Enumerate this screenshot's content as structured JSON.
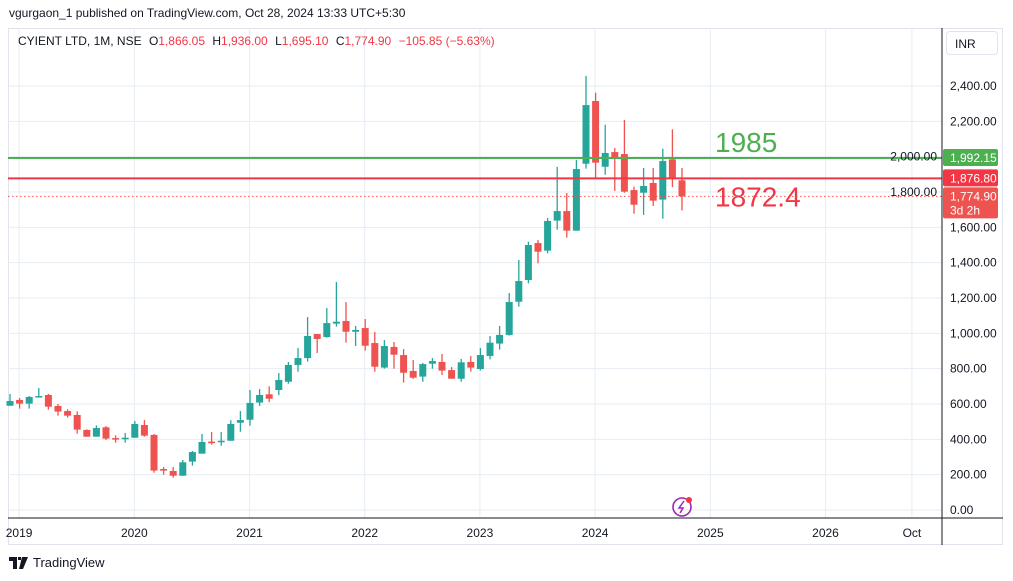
{
  "header": {
    "published": "vgurgaon_1 published on TradingView.com, Oct 28, 2024 13:33 UTC+5:30"
  },
  "legend": {
    "symbol": "CYIENT LTD, 1M, NSE",
    "o_label": "O",
    "o": "1,866.05",
    "h_label": "H",
    "h": "1,936.00",
    "l_label": "L",
    "l": "1,695.10",
    "c_label": "C",
    "c": "1,774.90",
    "change": "−105.85 (−5.63%)"
  },
  "currency": "INR",
  "footer": {
    "brand": "TradingView"
  },
  "colors": {
    "up": "#26a69a",
    "down": "#ef5350",
    "green_line": "#4caf50",
    "red_line": "#f23645"
  },
  "chart_data": {
    "type": "candlestick",
    "title": "CYIENT LTD, 1M, NSE",
    "ylim": [
      0,
      2400
    ],
    "y_ticks": [
      "0.00",
      "200.00",
      "400.00",
      "600.00",
      "800.00",
      "1,000.00",
      "1,200.00",
      "1,400.00",
      "1,600.00",
      "1,800.00",
      "2,000.00",
      "2,200.00",
      "2,400.00"
    ],
    "y_tick_values": [
      0,
      200,
      400,
      600,
      800,
      1000,
      1200,
      1400,
      1600,
      1800,
      2000,
      2200,
      2400
    ],
    "x_ticks": [
      {
        "label": "2019",
        "month": 1
      },
      {
        "label": "2020",
        "month": 13
      },
      {
        "label": "2021",
        "month": 25
      },
      {
        "label": "2022",
        "month": 37
      },
      {
        "label": "2023",
        "month": 49
      },
      {
        "label": "2024",
        "month": 61
      },
      {
        "label": "2025",
        "month": 73
      },
      {
        "label": "2026",
        "month": 85
      },
      {
        "label": "Oct",
        "month": 94
      }
    ],
    "candles_ohlc_from_dec_2018": [
      [
        590,
        657,
        590,
        617
      ],
      [
        623,
        634,
        574,
        602
      ],
      [
        602,
        645,
        574,
        640
      ],
      [
        642,
        690,
        640,
        645
      ],
      [
        651,
        657,
        568,
        585
      ],
      [
        589,
        600,
        534,
        557
      ],
      [
        560,
        570,
        523,
        534
      ],
      [
        538,
        558,
        432,
        455
      ],
      [
        453,
        457,
        415,
        415
      ],
      [
        415,
        479,
        415,
        464
      ],
      [
        468,
        475,
        396,
        404
      ],
      [
        407,
        423,
        381,
        404
      ],
      [
        406,
        436,
        381,
        409
      ],
      [
        409,
        504,
        409,
        487
      ],
      [
        481,
        509,
        415,
        421
      ],
      [
        425,
        430,
        211,
        223
      ],
      [
        232,
        243,
        200,
        223
      ],
      [
        221,
        243,
        183,
        194
      ],
      [
        194,
        283,
        194,
        270
      ],
      [
        274,
        334,
        251,
        328
      ],
      [
        319,
        430,
        319,
        385
      ],
      [
        387,
        442,
        370,
        381
      ],
      [
        389,
        442,
        364,
        392
      ],
      [
        392,
        508,
        392,
        487
      ],
      [
        494,
        560,
        443,
        509
      ],
      [
        511,
        679,
        477,
        606
      ],
      [
        608,
        685,
        589,
        651
      ],
      [
        655,
        700,
        610,
        630
      ],
      [
        679,
        775,
        650,
        736
      ],
      [
        726,
        838,
        715,
        821
      ],
      [
        821,
        917,
        783,
        860
      ],
      [
        860,
        1092,
        840,
        985
      ],
      [
        996,
        996,
        889,
        968
      ],
      [
        979,
        1143,
        975,
        1058
      ],
      [
        1055,
        1291,
        1038,
        1066
      ],
      [
        1070,
        1177,
        947,
        1009
      ],
      [
        1009,
        1042,
        928,
        1019
      ],
      [
        1030,
        1081,
        902,
        930
      ],
      [
        945,
        1008,
        783,
        811
      ],
      [
        806,
        962,
        800,
        928
      ],
      [
        923,
        951,
        800,
        879
      ],
      [
        877,
        911,
        721,
        777
      ],
      [
        787,
        849,
        742,
        749
      ],
      [
        755,
        832,
        726,
        826
      ],
      [
        828,
        860,
        800,
        843
      ],
      [
        838,
        883,
        764,
        789
      ],
      [
        792,
        809,
        743,
        743
      ],
      [
        743,
        855,
        726,
        836
      ],
      [
        838,
        872,
        783,
        806
      ],
      [
        798,
        917,
        790,
        877
      ],
      [
        872,
        985,
        853,
        947
      ],
      [
        942,
        1042,
        908,
        991
      ],
      [
        991,
        1228,
        987,
        1177
      ],
      [
        1179,
        1415,
        1151,
        1296
      ],
      [
        1302,
        1519,
        1283,
        1500
      ],
      [
        1511,
        1528,
        1396,
        1462
      ],
      [
        1468,
        1653,
        1453,
        1636
      ],
      [
        1638,
        1942,
        1587,
        1692
      ],
      [
        1692,
        1794,
        1542,
        1581
      ],
      [
        1581,
        1981,
        1581,
        1930
      ],
      [
        1960,
        2457,
        1932,
        2292
      ],
      [
        2315,
        2362,
        1874,
        1966
      ],
      [
        1943,
        2181,
        1898,
        2021
      ],
      [
        2026,
        2049,
        1806,
        1987
      ],
      [
        2015,
        2208,
        1796,
        1802
      ],
      [
        1811,
        1830,
        1677,
        1728
      ],
      [
        1796,
        1936,
        1670,
        1834
      ],
      [
        1851,
        1936,
        1721,
        1751
      ],
      [
        1757,
        2045,
        1649,
        1975
      ],
      [
        1985,
        2155,
        1828,
        1874
      ],
      [
        1866.05,
        1936,
        1695.1,
        1774.9
      ]
    ],
    "horizontal_lines": [
      {
        "value": 1992.15,
        "label": "1,992.15",
        "annotation": "1985",
        "color": "green"
      },
      {
        "value": 1876.8,
        "label": "1,876.80",
        "annotation": "1872.4",
        "color": "red"
      }
    ],
    "last_price": {
      "value": 1774.9,
      "label": "1,774.90",
      "countdown": "3d 2h"
    }
  }
}
